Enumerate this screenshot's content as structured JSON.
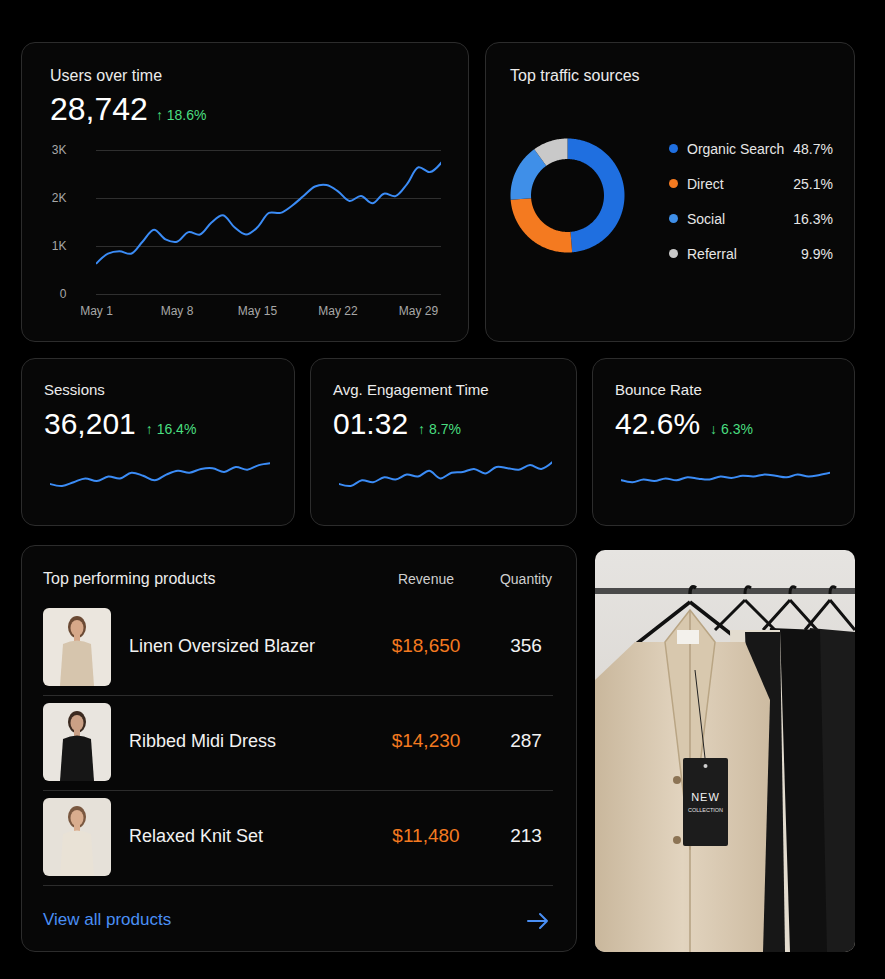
{
  "chart_data": [
    {
      "type": "line",
      "title": "Users over time",
      "subtitle": "28,742",
      "annotations": [
        "↑ 18.6%"
      ],
      "x": [
        1,
        2,
        3,
        4,
        5,
        6,
        7,
        8,
        9,
        10,
        11,
        12,
        13,
        14,
        15,
        16,
        17,
        18,
        19,
        20,
        21,
        22,
        23,
        24,
        25,
        26,
        27,
        28,
        29,
        30,
        31
      ],
      "values": [
        650,
        850,
        900,
        850,
        1100,
        1350,
        1150,
        1100,
        1300,
        1250,
        1500,
        1650,
        1400,
        1250,
        1400,
        1700,
        1700,
        1850,
        2050,
        2250,
        2280,
        2150,
        1950,
        2050,
        1900,
        2100,
        2050,
        2300,
        2650,
        2550,
        2750
      ],
      "color": "#3b8cf6",
      "xlim": [
        1,
        31
      ],
      "xticks": [
        {
          "value": 1,
          "label": "May 1"
        },
        {
          "value": 8,
          "label": "May 8"
        },
        {
          "value": 15,
          "label": "May 15"
        },
        {
          "value": 22,
          "label": "May 22"
        },
        {
          "value": 29,
          "label": "May 29"
        }
      ],
      "ylim": [
        0,
        3000
      ],
      "yticks": [
        0,
        {
          "value": 1000,
          "label": "1K"
        },
        {
          "value": 2000,
          "label": "2K"
        },
        {
          "value": 3000,
          "label": "3K"
        }
      ],
      "grid": true
    },
    {
      "type": "pie",
      "title": "Top traffic sources",
      "categories": [
        "Organic Search",
        "Direct",
        "Social",
        "Referral"
      ],
      "values": [
        48.7,
        25.1,
        16.3,
        9.9
      ],
      "value_labels": [
        "48.7%",
        "25.1%",
        "16.3%",
        "9.9%"
      ],
      "colors": [
        "#1f6fe0",
        "#f47a20",
        "#3f8fe8",
        "#c9c9c9"
      ],
      "legend": "right"
    },
    {
      "type": "line",
      "title": "Sessions",
      "subtitle": "36,201",
      "annotations": [
        "↑ 16.4%"
      ],
      "values": [
        30,
        25,
        35,
        45,
        38,
        50,
        45,
        60,
        52,
        40,
        55,
        65,
        60,
        70,
        72,
        62,
        75,
        68,
        80,
        85
      ],
      "color": "#3b8cf6",
      "ylim": [
        0,
        100
      ],
      "yticks": [],
      "tick_labels": false
    },
    {
      "type": "line",
      "title": "Avg. Engagement Time",
      "subtitle": "01:32",
      "annotations": [
        "↑ 8.7%"
      ],
      "values": [
        30,
        25,
        40,
        35,
        48,
        42,
        55,
        50,
        65,
        45,
        60,
        62,
        70,
        58,
        75,
        72,
        68,
        80,
        70,
        88
      ],
      "color": "#3b8cf6",
      "ylim": [
        0,
        100
      ],
      "yticks": [],
      "tick_labels": false
    },
    {
      "type": "line",
      "title": "Bounce Rate",
      "subtitle": "42.6%",
      "annotations": [
        "↓ 6.3%"
      ],
      "values": [
        40,
        35,
        42,
        38,
        45,
        40,
        48,
        44,
        42,
        50,
        46,
        52,
        50,
        55,
        52,
        48,
        55,
        50,
        54,
        60
      ],
      "color": "#3b8cf6",
      "ylim": [
        0,
        100
      ],
      "yticks": [],
      "tick_labels": false
    }
  ],
  "products": {
    "title": "Top performing products",
    "columns": [
      "Revenue",
      "Quantity"
    ],
    "rows": [
      {
        "name": "Linen Oversized Blazer",
        "revenue": "$18,650",
        "quantity": 356
      },
      {
        "name": "Ribbed Midi Dress",
        "revenue": "$14,230",
        "quantity": 287
      },
      {
        "name": "Relaxed Knit Set",
        "revenue": "$11,480",
        "quantity": 213
      }
    ],
    "link": "View all products"
  },
  "banner": {
    "tag": [
      "NEW",
      "COLLECTION"
    ]
  }
}
